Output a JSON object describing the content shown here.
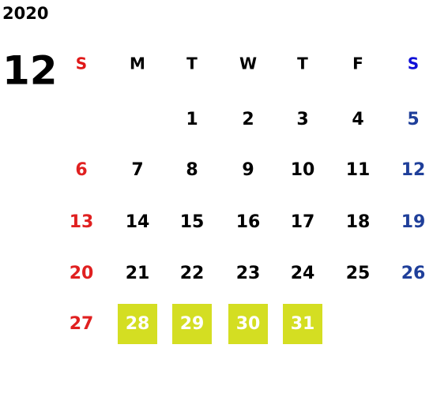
{
  "calendar": {
    "year": "2020",
    "month": "12",
    "weekdays": [
      "S",
      "M",
      "T",
      "W",
      "T",
      "F",
      "S"
    ],
    "weekday_colors": [
      "#e01818",
      "#000000",
      "#000000",
      "#000000",
      "#000000",
      "#000000",
      "#1010d8"
    ],
    "day_colors": [
      "#e02020",
      "#000000",
      "#000000",
      "#000000",
      "#000000",
      "#000000",
      "#1f3f9a"
    ],
    "highlight_color": "#d4de22",
    "weeks": [
      [
        null,
        null,
        1,
        2,
        3,
        4,
        5
      ],
      [
        6,
        7,
        8,
        9,
        10,
        11,
        12
      ],
      [
        13,
        14,
        15,
        16,
        17,
        18,
        19
      ],
      [
        20,
        21,
        22,
        23,
        24,
        25,
        26
      ],
      [
        27,
        {
          "day": 28,
          "highlight": true
        },
        {
          "day": 29,
          "highlight": true
        },
        {
          "day": 30,
          "highlight": true
        },
        {
          "day": 31,
          "highlight": true
        },
        null,
        null
      ]
    ]
  }
}
